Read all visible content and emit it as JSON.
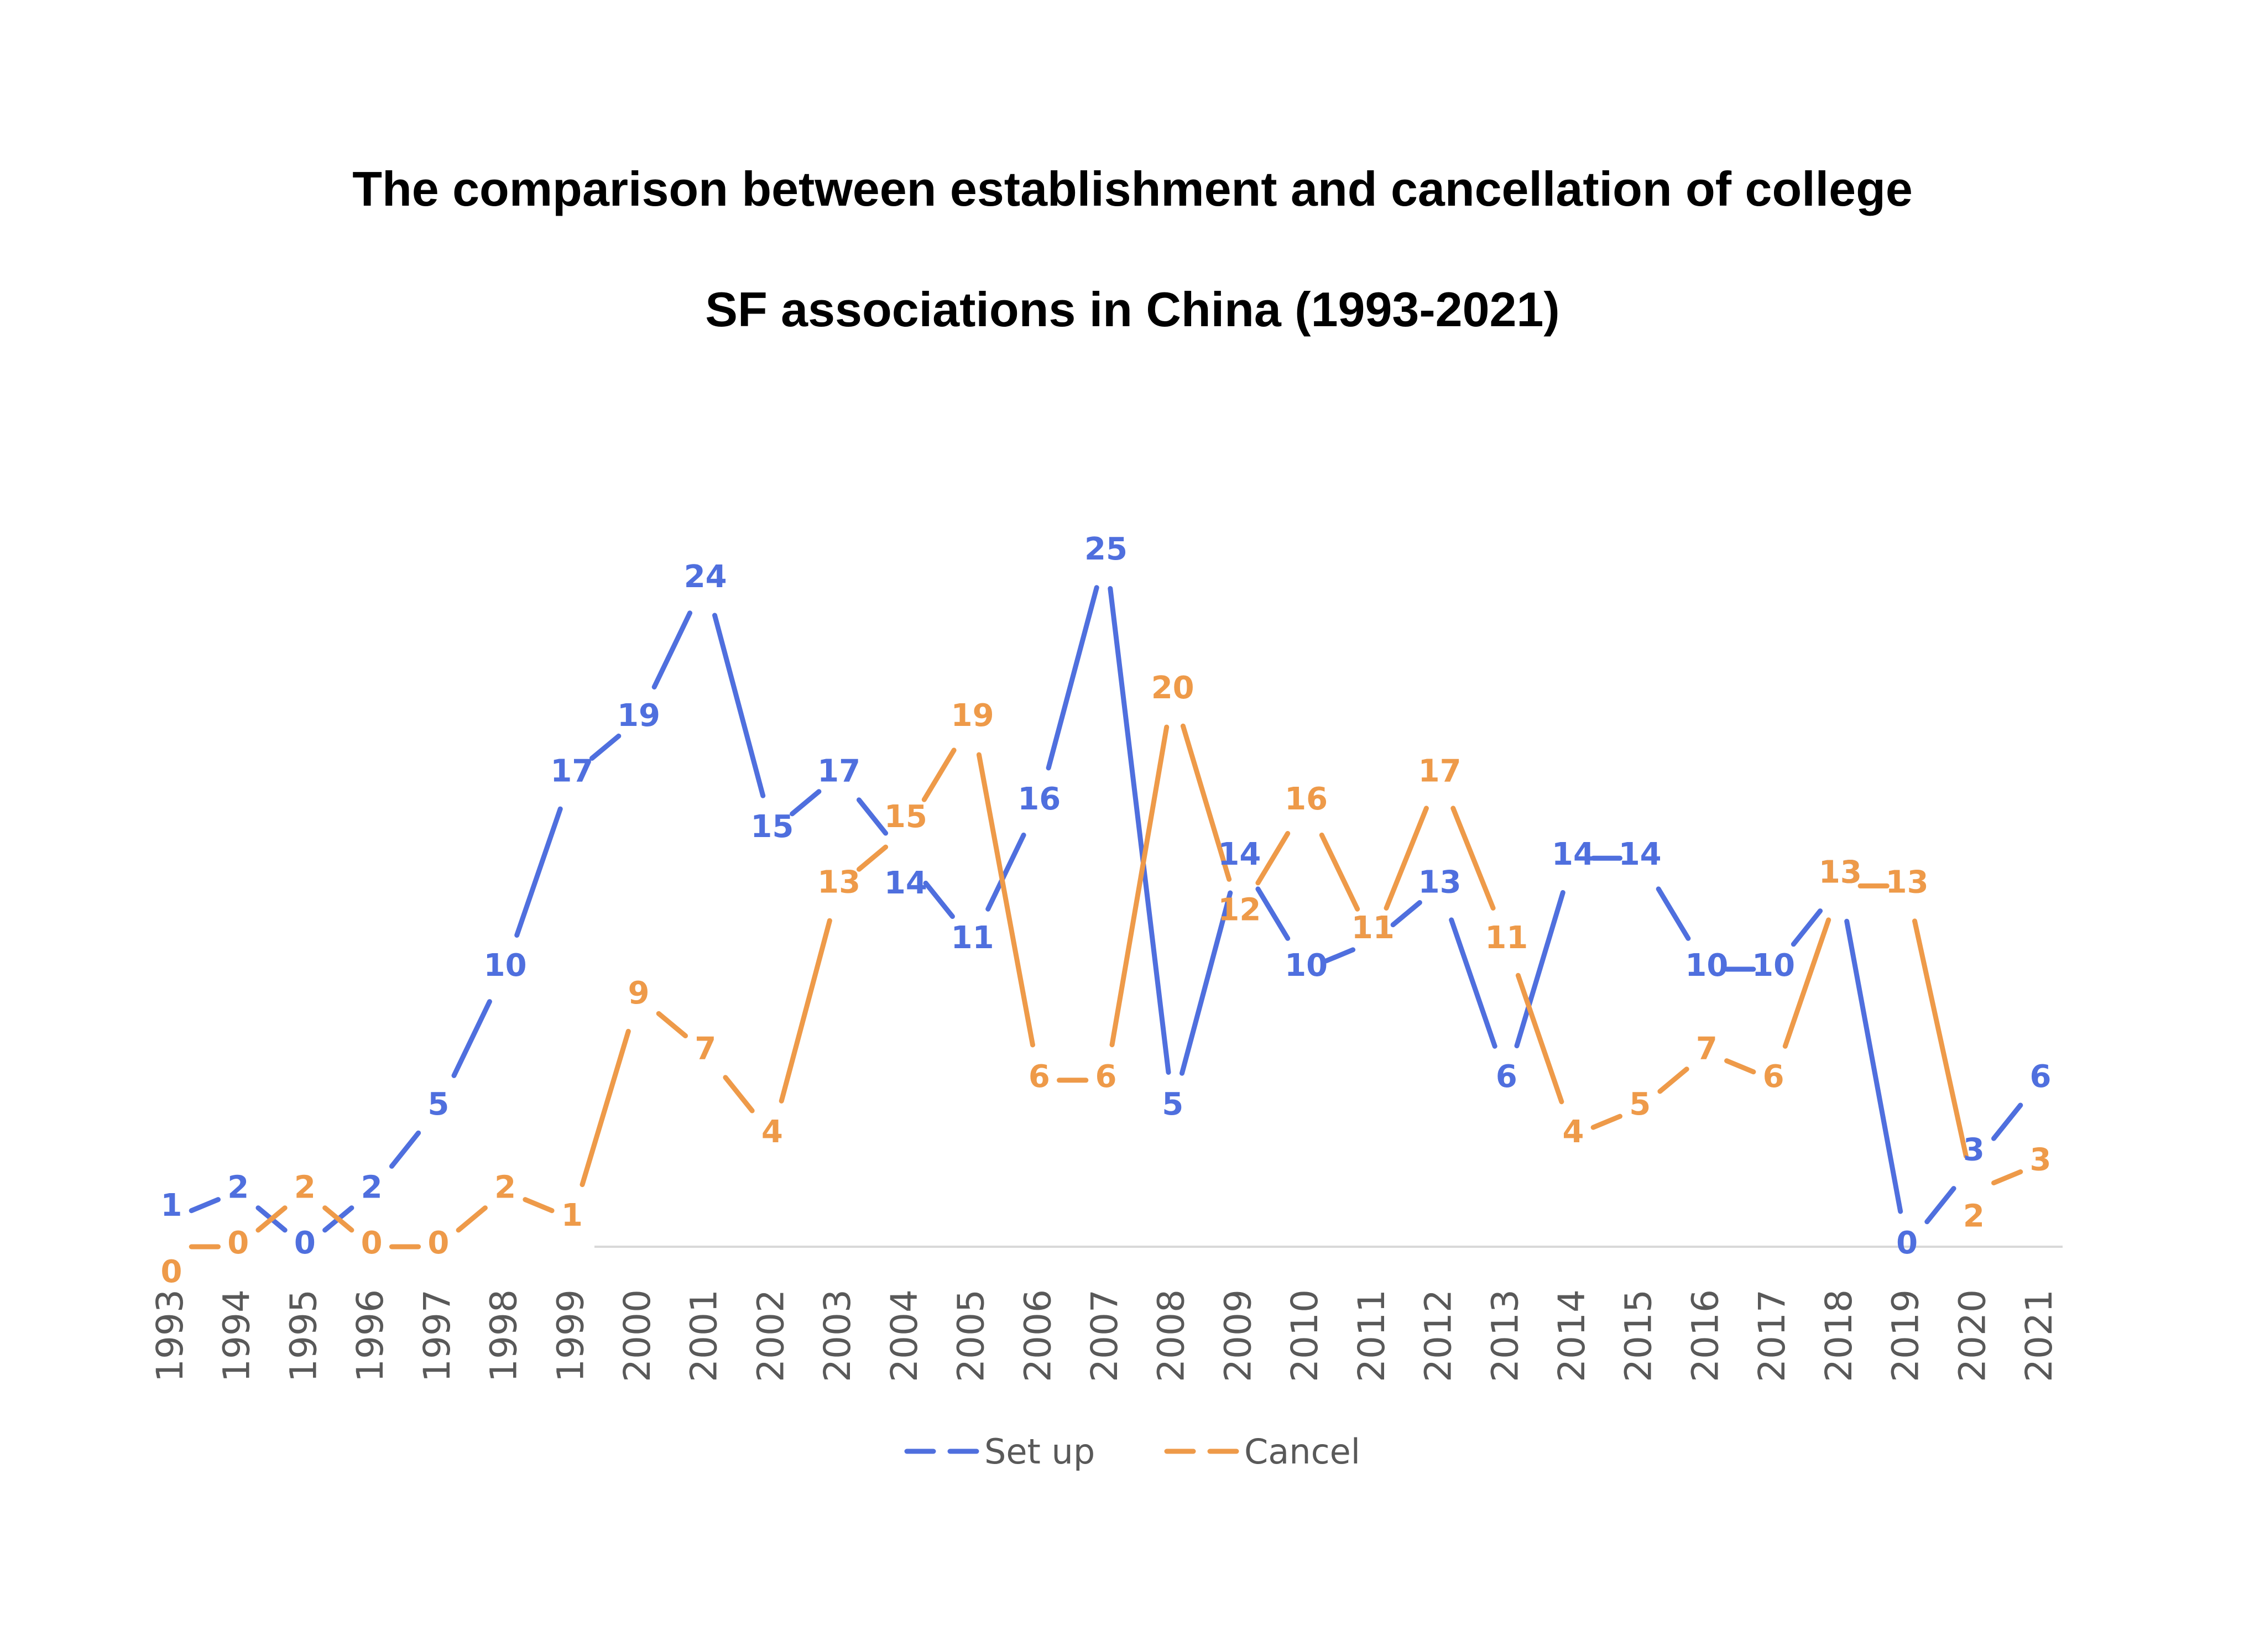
{
  "chart_data": {
    "type": "line",
    "title": "The comparison between establishment and cancellation of college",
    "subtitle": "SF associations in China (1993-2021)",
    "xlabel": "",
    "ylabel": "",
    "ylim": [
      0,
      25
    ],
    "grid": false,
    "legend_position": "bottom-center",
    "categories": [
      "1993",
      "1994",
      "1995",
      "1996",
      "1997",
      "1998",
      "1999",
      "2000",
      "2001",
      "2002",
      "2003",
      "2004",
      "2005",
      "2006",
      "2007",
      "2008",
      "2009",
      "2010",
      "2011",
      "2012",
      "2013",
      "2014",
      "2015",
      "2016",
      "2017",
      "2018",
      "2019",
      "2020",
      "2021"
    ],
    "series": [
      {
        "name": "Set up",
        "color": "#4f6fde",
        "values": [
          1,
          2,
          0,
          2,
          5,
          10,
          17,
          19,
          24,
          15,
          17,
          14,
          11,
          16,
          25,
          5,
          14,
          10,
          11,
          13,
          6,
          14,
          14,
          10,
          10,
          13,
          0,
          3,
          6
        ]
      },
      {
        "name": "Cancel",
        "color": "#ee9a49",
        "values": [
          0,
          0,
          2,
          0,
          0,
          2,
          1,
          9,
          7,
          4,
          13,
          15,
          19,
          6,
          6,
          20,
          12,
          16,
          11,
          17,
          11,
          4,
          5,
          7,
          6,
          13,
          13,
          2,
          3
        ]
      }
    ]
  }
}
